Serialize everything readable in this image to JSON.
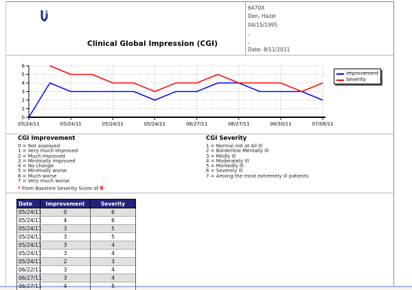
{
  "header": {
    "title": "Clinical Global Impression (CGI)",
    "logo_icon": "shield-u-icon",
    "patient_lines": [
      "6470X",
      "Den, Hazel",
      "04/15/1995",
      ",",
      ",",
      "Date: 8/11/2011"
    ]
  },
  "chart_data": {
    "type": "line",
    "title": "",
    "xlabel": "",
    "ylabel": "",
    "ylim": [
      0,
      6
    ],
    "y_ticks": [
      0,
      1,
      2,
      3,
      4,
      5,
      6
    ],
    "n_points": 15,
    "x_tick_indices": [
      0,
      2,
      4,
      6,
      8,
      10,
      12,
      14
    ],
    "x_tick_labels": [
      "05/24/11",
      "05/24/11",
      "05/24/11",
      "05/24/11",
      "06/27/11",
      "06/27/11",
      "06/30/11",
      "07/08/11"
    ],
    "grid": true,
    "legend_position": "right",
    "series": [
      {
        "name": "Improvement",
        "color": "#0000ff",
        "values": [
          0,
          4,
          3,
          3,
          3,
          3,
          2,
          3,
          3,
          4,
          4,
          3,
          3,
          3,
          2
        ]
      },
      {
        "name": "Severity",
        "color": "#ff0000",
        "values": [
          null,
          6,
          5,
          5,
          4,
          4,
          3,
          4,
          4,
          5,
          4,
          4,
          4,
          3,
          4
        ]
      }
    ]
  },
  "improvement_key": {
    "title": "CGI Improvement",
    "items": [
      "0 = Not assessed",
      "1 = Very much improved",
      "2 = Much improved",
      "3 = Minimally improved",
      "4 = No change",
      "5 = Minimally worse",
      "6 = Much worse",
      "7 = Very much worse"
    ],
    "footnote": {
      "marker": "*",
      "text": " From Baseline Severity Score of ",
      "score": "6"
    }
  },
  "severity_key": {
    "title": "CGI Severity",
    "items": [
      "1 = Normal not at All Ill",
      "2 = Borderline Mentally Ill",
      "3 = Mildly Ill",
      "4 = Moderately Ill",
      "5 = Markedly Ill",
      "6 = Severely Ill",
      "7 = Among the most extremely ill patients"
    ]
  },
  "table": {
    "columns": [
      "Date",
      "Improvement",
      "Severity"
    ],
    "rows": [
      [
        "05/24/11",
        "0",
        "6"
      ],
      [
        "05/24/11",
        "4",
        "6"
      ],
      [
        "05/24/11",
        "3",
        "5"
      ],
      [
        "05/24/11",
        "3",
        "5"
      ],
      [
        "05/24/11",
        "3",
        "4"
      ],
      [
        "05/24/11",
        "3",
        "4"
      ],
      [
        "05/24/11",
        "2",
        "3"
      ],
      [
        "06/22/11",
        "3",
        "4"
      ],
      [
        "06/27/11",
        "3",
        "4"
      ],
      [
        "06/27/11",
        "4",
        "5"
      ]
    ]
  },
  "colors": {
    "improvement": "#0000ff",
    "severity": "#ff0000",
    "table_header_bg": "#23227a",
    "row_stripe": "#e0e0e0",
    "logo_band_light": "#92a6d1",
    "logo_band_mid": "#3c5aa9",
    "logo_band_dark": "#1c2b99"
  }
}
